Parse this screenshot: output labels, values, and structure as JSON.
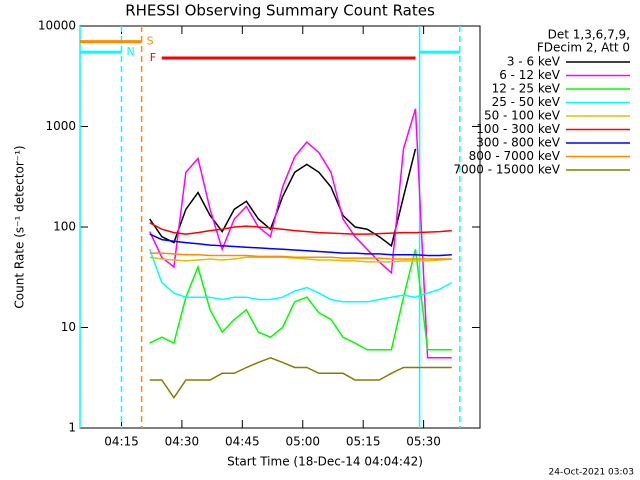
{
  "chart_data": {
    "type": "line",
    "title": "RHESSI Observing Summary Count Rates",
    "x_label": "Start Time (18-Dec-14 04:04:42)",
    "y_label": "Count Rate (s⁻¹ detector⁻¹)",
    "legend_header": [
      "Det 1,3,6,7,9,",
      "FDecim 2, Att 0"
    ],
    "footer": "24-Oct-2021 03:03",
    "log_y": true,
    "xlim": [
      "04:04:42",
      "05:44:00"
    ],
    "xticks": [
      "04:15",
      "04:30",
      "04:45",
      "05:00",
      "05:15",
      "05:30"
    ],
    "ylim": [
      1,
      10000
    ],
    "yticks": [
      1,
      10,
      100,
      1000,
      10000
    ],
    "x": [
      "04:22",
      "04:25",
      "04:28",
      "04:31",
      "04:34",
      "04:37",
      "04:40",
      "04:43",
      "04:46",
      "04:49",
      "04:52",
      "04:55",
      "04:58",
      "05:01",
      "05:04",
      "05:07",
      "05:10",
      "05:13",
      "05:16",
      "05:19",
      "05:22",
      "05:25",
      "05:28",
      "05:31",
      "05:34",
      "05:37"
    ],
    "series": [
      {
        "name": "3 - 6 keV",
        "color": "#000000",
        "values": [
          120,
          80,
          70,
          150,
          220,
          130,
          90,
          150,
          180,
          120,
          95,
          200,
          350,
          420,
          350,
          250,
          130,
          100,
          95,
          80,
          65,
          200,
          600,
          null,
          null,
          null
        ]
      },
      {
        "name": "6 - 12 keV",
        "color": "#ff00ff",
        "values": [
          90,
          50,
          40,
          350,
          480,
          150,
          60,
          120,
          160,
          100,
          80,
          250,
          500,
          700,
          550,
          350,
          120,
          80,
          60,
          45,
          35,
          600,
          1500,
          5,
          5,
          5
        ]
      },
      {
        "name": "12 - 25 keV",
        "color": "#00ff00",
        "values": [
          7,
          8,
          7,
          20,
          40,
          15,
          9,
          12,
          15,
          9,
          8,
          10,
          18,
          20,
          14,
          12,
          8,
          7,
          6,
          6,
          6,
          20,
          60,
          6,
          6,
          6
        ]
      },
      {
        "name": "25 - 50 keV",
        "color": "#00ffff",
        "values": [
          60,
          28,
          22,
          20,
          20,
          20,
          19,
          20,
          20,
          19,
          19,
          20,
          23,
          25,
          22,
          19,
          18,
          18,
          18,
          19,
          20,
          21,
          20,
          22,
          24,
          28
        ]
      },
      {
        "name": "50 - 100 keV",
        "color": "#e0c000",
        "values": [
          50,
          48,
          47,
          46,
          47,
          48,
          47,
          48,
          50,
          50,
          50,
          50,
          49,
          48,
          47,
          47,
          46,
          46,
          45,
          45,
          45,
          46,
          46,
          46,
          47,
          48
        ]
      },
      {
        "name": "100 - 300 keV",
        "color": "#ff0000",
        "values": [
          110,
          95,
          88,
          85,
          88,
          92,
          95,
          100,
          102,
          100,
          98,
          95,
          92,
          90,
          88,
          87,
          86,
          85,
          85,
          86,
          87,
          88,
          88,
          89,
          90,
          92
        ]
      },
      {
        "name": "300 - 800 keV",
        "color": "#0000ff",
        "values": [
          85,
          75,
          72,
          70,
          68,
          66,
          65,
          64,
          63,
          62,
          61,
          60,
          59,
          58,
          57,
          56,
          55,
          55,
          54,
          54,
          53,
          53,
          53,
          52,
          52,
          53
        ]
      },
      {
        "name": "800 - 7000 keV",
        "color": "#ff8c00",
        "values": [
          55,
          55,
          54,
          53,
          53,
          52,
          52,
          52,
          52,
          51,
          51,
          51,
          50,
          50,
          50,
          50,
          49,
          49,
          49,
          49,
          48,
          48,
          48,
          48,
          48,
          48
        ]
      },
      {
        "name": "7000 - 15000 keV",
        "color": "#808000",
        "values": [
          3,
          3,
          2,
          3,
          3,
          3,
          3.5,
          3.5,
          4,
          4.5,
          5,
          4.5,
          4,
          4,
          3.5,
          3.5,
          3.5,
          3,
          3,
          3,
          3.5,
          4,
          4,
          4,
          4,
          4
        ]
      }
    ],
    "flags": [
      {
        "label": "S",
        "color": "#ff8c00",
        "level": 7000,
        "start": "04:04:42",
        "end": "04:20"
      },
      {
        "label": "N",
        "color": "#00ffff",
        "level": 5500,
        "start": "04:04:42",
        "end": "04:15"
      },
      {
        "label": "F",
        "color": "#ff0000",
        "level": 4800,
        "start": "04:25",
        "end": "05:28"
      },
      {
        "label": "",
        "color": "#00ffff",
        "level": 5500,
        "start": "05:29",
        "end": "05:39"
      }
    ],
    "vlines": [
      {
        "x": "04:04:42",
        "color": "#00ffff",
        "dashed": false
      },
      {
        "x": "04:15",
        "color": "#00ffff",
        "dashed": true
      },
      {
        "x": "04:20",
        "color": "#ff8c00",
        "dashed": true
      },
      {
        "x": "05:29",
        "color": "#00ffff",
        "dashed": false
      },
      {
        "x": "05:39",
        "color": "#00ffff",
        "dashed": true
      }
    ]
  }
}
